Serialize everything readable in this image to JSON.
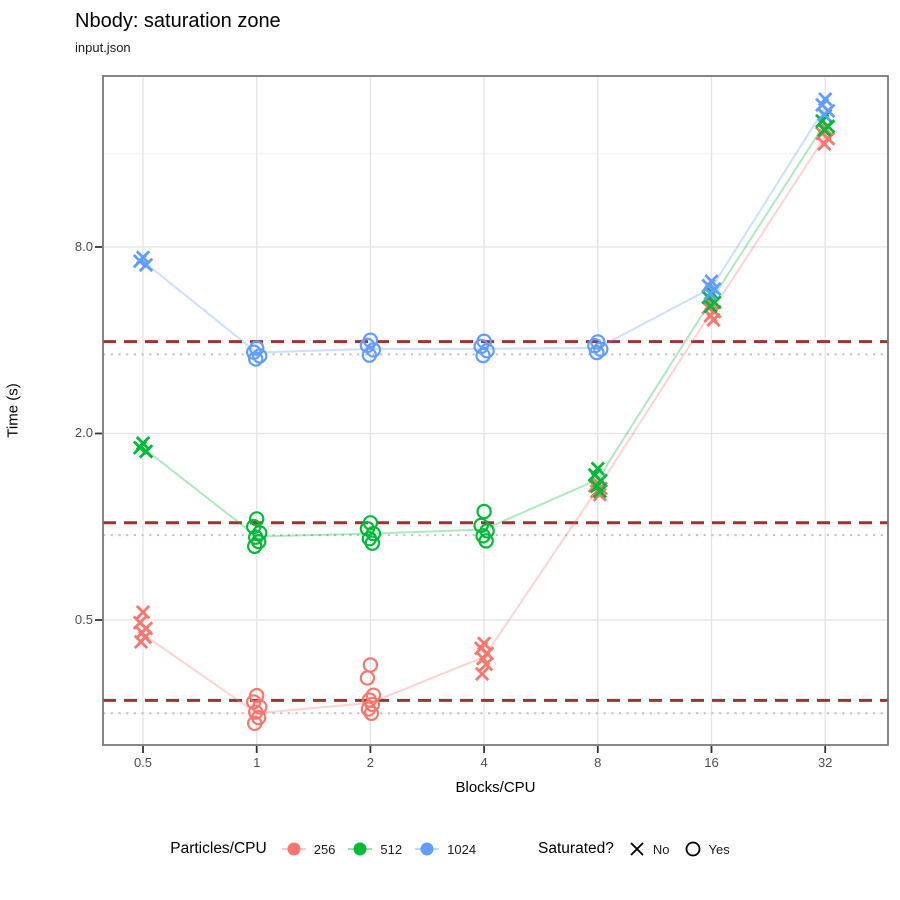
{
  "page": {
    "background": "#ffffff"
  },
  "chart_data": {
    "type": "scatter",
    "title": "Nbody: saturation zone",
    "subtitle": "input.json",
    "xlabel": "Blocks/CPU",
    "ylabel": "Time (s)",
    "x_scale": "log2",
    "y_scale": "log10",
    "grid": true,
    "x_ticks": [
      "0.5",
      "1",
      "2",
      "4",
      "8",
      "16",
      "32"
    ],
    "x_tick_values": [
      0.5,
      1,
      2,
      4,
      8,
      16,
      32
    ],
    "y_ticks": [
      "0.5",
      "2.0",
      "8.0"
    ],
    "y_tick_values": [
      0.5,
      2,
      8
    ],
    "y_minor_values": [
      0.25,
      1,
      4,
      16
    ],
    "x_range": [
      0.39,
      47
    ],
    "y_range": [
      0.2,
      28.5
    ],
    "series": [
      {
        "name": "256",
        "color": "#f8766d",
        "clusters": [
          {
            "x": 0.5,
            "saturated": false,
            "times": [
              0.53,
              0.49,
              0.47,
              0.455,
              0.44,
              0.425
            ]
          },
          {
            "x": 1,
            "saturated": true,
            "times": [
              0.285,
              0.272,
              0.262,
              0.252,
              0.242,
              0.232
            ]
          },
          {
            "x": 2,
            "saturated": true,
            "times": [
              0.358,
              0.325,
              0.286,
              0.276,
              0.267,
              0.258,
              0.25
            ]
          },
          {
            "x": 4,
            "saturated": false,
            "times": [
              0.42,
              0.405,
              0.39,
              0.375,
              0.36,
              0.335
            ]
          },
          {
            "x": 8,
            "saturated": false,
            "times": [
              1.38,
              1.355,
              1.33,
              1.3,
              1.27
            ]
          },
          {
            "x": 16,
            "saturated": false,
            "times": [
              5.25,
              5.1,
              4.95,
              4.8,
              4.65
            ]
          },
          {
            "x": 32,
            "saturated": false,
            "times": [
              19.3,
              18.6,
              17.9,
              17.2
            ]
          }
        ],
        "trend": [
          0.45,
          0.25,
          0.27,
          0.38,
          1.33,
          4.95,
          18.2
        ],
        "threshold_dashed": 0.275,
        "best_dotted": 0.25
      },
      {
        "name": "512",
        "color": "#00ba38",
        "clusters": [
          {
            "x": 0.5,
            "saturated": false,
            "times": [
              1.86,
              1.8,
              1.75
            ]
          },
          {
            "x": 1,
            "saturated": true,
            "times": [
              1.06,
              1.0,
              0.955,
              0.925,
              0.895,
              0.865
            ]
          },
          {
            "x": 2,
            "saturated": true,
            "times": [
              1.03,
              0.985,
              0.95,
              0.915,
              0.885
            ]
          },
          {
            "x": 4,
            "saturated": true,
            "times": [
              1.12,
              1.01,
              0.97,
              0.935,
              0.9
            ]
          },
          {
            "x": 8,
            "saturated": false,
            "times": [
              1.54,
              1.47,
              1.41,
              1.35,
              1.3
            ]
          },
          {
            "x": 16,
            "saturated": false,
            "times": [
              5.7,
              5.5,
              5.3,
              5.15
            ]
          },
          {
            "x": 32,
            "saturated": false,
            "times": [
              21.2,
              20.4,
              19.6,
              19.1
            ]
          }
        ],
        "trend": [
          1.8,
          0.93,
          0.95,
          0.98,
          1.42,
          5.4,
          20.1
        ],
        "threshold_dashed": 1.03,
        "best_dotted": 0.94
      },
      {
        "name": "1024",
        "color": "#619cff",
        "clusters": [
          {
            "x": 0.5,
            "saturated": false,
            "times": [
              7.4,
              7.2,
              7.0
            ]
          },
          {
            "x": 1,
            "saturated": true,
            "times": [
              3.77,
              3.66,
              3.56,
              3.48
            ]
          },
          {
            "x": 2,
            "saturated": true,
            "times": [
              4.0,
              3.85,
              3.72,
              3.58
            ]
          },
          {
            "x": 4,
            "saturated": true,
            "times": [
              3.97,
              3.82,
              3.7,
              3.57
            ]
          },
          {
            "x": 8,
            "saturated": true,
            "times": [
              3.95,
              3.84,
              3.74,
              3.65
            ]
          },
          {
            "x": 16,
            "saturated": false,
            "times": [
              6.2,
              6.0,
              5.85,
              5.65
            ]
          },
          {
            "x": 32,
            "saturated": false,
            "times": [
              24.0,
              23.0,
              22.0,
              21.4
            ]
          }
        ],
        "trend": [
          7.2,
          3.65,
          3.75,
          3.75,
          3.78,
          5.9,
          22.6
        ],
        "threshold_dashed": 3.96,
        "best_dotted": 3.6
      }
    ],
    "legend": {
      "color_title": "Particles/CPU",
      "color_entries": [
        {
          "label": "256",
          "color": "#f8766d"
        },
        {
          "label": "512",
          "color": "#00ba38"
        },
        {
          "label": "1024",
          "color": "#619cff"
        }
      ],
      "shape_title": "Saturated?",
      "shape_entries": [
        {
          "shape": "x",
          "label": "No"
        },
        {
          "shape": "circle",
          "label": "Yes"
        }
      ]
    },
    "style_colors": {
      "dashed_reference": "#9c3434",
      "dotted_reference": "#c2c2c2",
      "grid_major": "#e4e4e4",
      "grid_minor": "#efefef",
      "panel_border": "#787878",
      "axis_text": "#4d4d4d"
    }
  }
}
